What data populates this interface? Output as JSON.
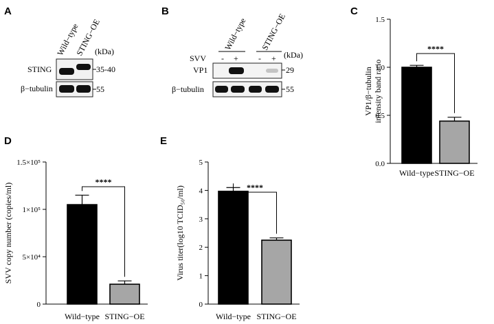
{
  "panel_letters": {
    "A": "A",
    "B": "B",
    "C": "C",
    "D": "D",
    "E": "E"
  },
  "panel_a": {
    "lanes": [
      "Wild−type",
      "STING−OE"
    ],
    "unit": "(kDa)",
    "rows": [
      {
        "label": "STING",
        "mw": "35-40"
      },
      {
        "label": "β−tubulin",
        "mw": "55"
      }
    ]
  },
  "panel_b": {
    "groups": [
      "Wild−type",
      "STING−OE"
    ],
    "unit": "(kDa)",
    "svv_label": "SVV",
    "svv_signs": [
      "-",
      "+",
      "-",
      "+"
    ],
    "rows": [
      {
        "label": "VP1",
        "mw": "29"
      },
      {
        "label": "β−tubulin",
        "mw": "55"
      }
    ]
  },
  "significance": "****",
  "colors": {
    "wild_type": "#000000",
    "sting_oe": "#a6a6a6"
  },
  "chart_data": [
    {
      "panel": "C",
      "type": "bar",
      "categories": [
        "Wild−type",
        "STING−OE"
      ],
      "values": [
        1.0,
        0.44
      ],
      "errors": [
        0.02,
        0.04
      ],
      "ylabel": "VP1/β−tubulin intensity band ratio",
      "ylabel_lines": [
        "VP1/β−tubulin",
        "intensity band ratio"
      ],
      "ylim": [
        0,
        1.5
      ],
      "yticks": [
        0.0,
        0.5,
        1.0,
        1.5
      ],
      "ytick_labels": [
        "0.0",
        "0.5",
        "1.0",
        "1.5"
      ],
      "significance": "****"
    },
    {
      "panel": "D",
      "type": "bar",
      "categories": [
        "Wild−type",
        "STING−OE"
      ],
      "values": [
        105000,
        21000
      ],
      "errors": [
        10000,
        3500
      ],
      "ylabel": "SVV copy number (copies/ml)",
      "ylim": [
        0,
        150000
      ],
      "yticks": [
        0,
        50000,
        100000,
        150000
      ],
      "ytick_labels": [
        "0",
        "5×10⁴",
        "1×10⁵",
        "1.5×10⁵"
      ],
      "significance": "****"
    },
    {
      "panel": "E",
      "type": "bar",
      "categories": [
        "Wild−type",
        "STING−OE"
      ],
      "values": [
        3.97,
        2.25
      ],
      "errors": [
        0.13,
        0.08
      ],
      "ylabel": "Virus titer(log10 TCID₅₀/ml)",
      "ylim": [
        0,
        5
      ],
      "yticks": [
        0,
        1,
        2,
        3,
        4,
        5
      ],
      "ytick_labels": [
        "0",
        "1",
        "2",
        "3",
        "4",
        "5"
      ],
      "significance": "****"
    }
  ]
}
